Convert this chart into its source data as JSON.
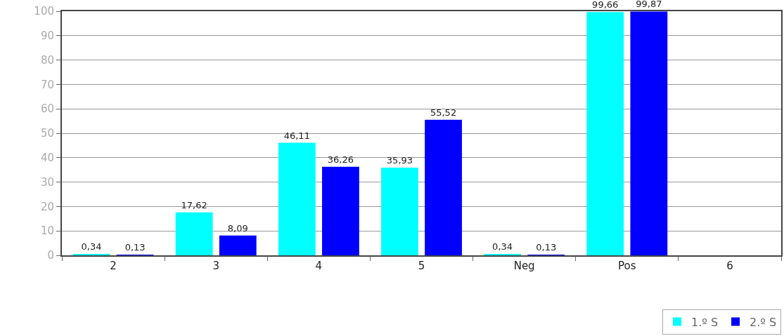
{
  "chart_data": {
    "type": "bar",
    "categories": [
      "2",
      "3",
      "4",
      "5",
      "Neg",
      "Pos",
      "6"
    ],
    "series": [
      {
        "name": "1.º S",
        "color": "#00ffff",
        "values": [
          0.34,
          17.62,
          46.11,
          35.93,
          0.34,
          99.66,
          null
        ],
        "value_labels": [
          "0,34",
          "17,62",
          "46,11",
          "35,93",
          "0,34",
          "99,66",
          null
        ]
      },
      {
        "name": "2.º S",
        "color": "#0000ff",
        "values": [
          0.13,
          8.09,
          36.26,
          55.52,
          0.13,
          99.87,
          null
        ],
        "value_labels": [
          "0,13",
          "8,09",
          "36,26",
          "55,52",
          "0,13",
          "99,87",
          null
        ]
      }
    ],
    "ylim": [
      0,
      100
    ],
    "yticks": [
      0,
      10,
      20,
      30,
      40,
      50,
      60,
      70,
      80,
      90,
      100
    ],
    "grid": "y",
    "legend": "bottom right"
  }
}
